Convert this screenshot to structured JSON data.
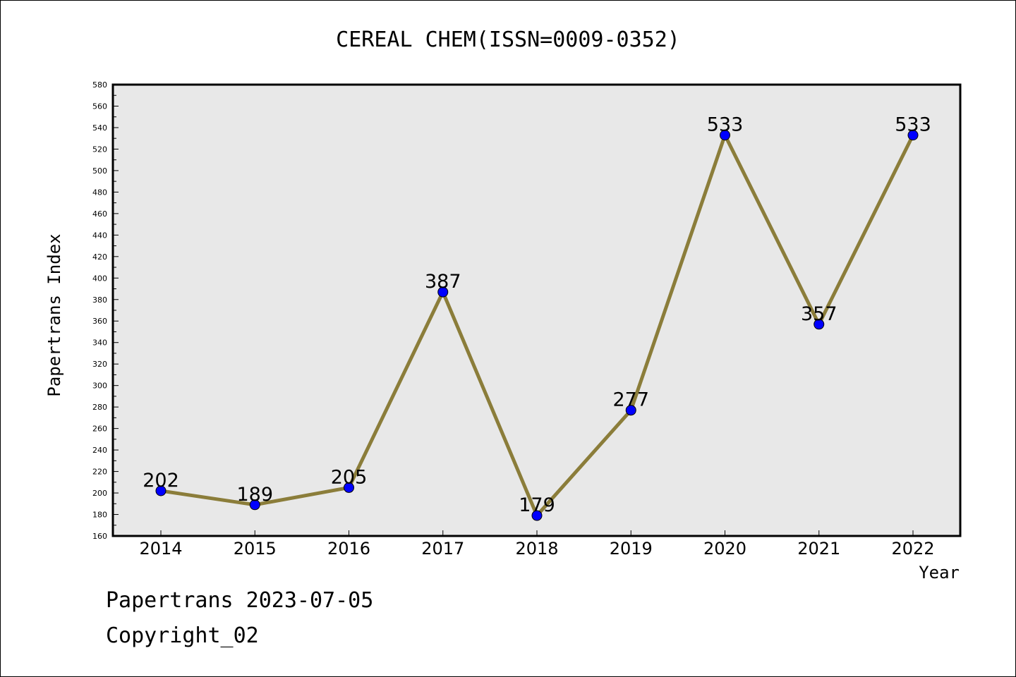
{
  "chart_data": {
    "type": "line",
    "title": "CEREAL CHEM(ISSN=0009-0352)",
    "xlabel": "Year",
    "ylabel": "Papertrans Index",
    "x": [
      "2014",
      "2015",
      "2016",
      "2017",
      "2018",
      "2019",
      "2020",
      "2021",
      "2022"
    ],
    "series": [
      {
        "values": [
          202,
          189,
          205,
          387,
          179,
          277,
          533,
          357,
          533
        ]
      }
    ],
    "data_labels": [
      "202",
      "189",
      "205",
      "387",
      "179",
      "277",
      "533",
      "357",
      "533"
    ],
    "ylim": [
      160,
      580
    ],
    "y_major_step": 20,
    "y_minor_step": 10,
    "y_ticks": [
      "160",
      "180",
      "200",
      "220",
      "240",
      "260",
      "280",
      "300",
      "320",
      "340",
      "360",
      "380",
      "400",
      "420",
      "440",
      "460",
      "480",
      "500",
      "520",
      "540",
      "560",
      "580"
    ],
    "grid": false,
    "line_color": "#8B7D3A",
    "marker_color": "#0000FF",
    "plot_background": "#E8E8E8"
  },
  "footer": {
    "line1": "Papertrans 2023-07-05",
    "line2": "Copyright_02"
  }
}
